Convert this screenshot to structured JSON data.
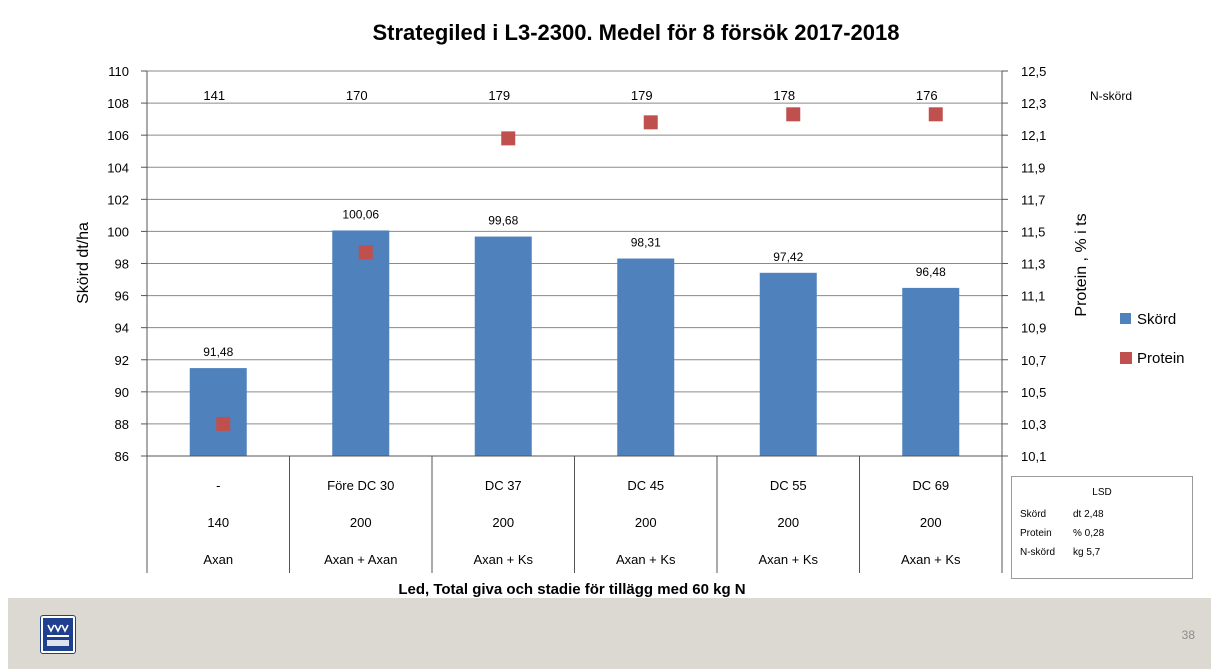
{
  "chart_data": {
    "type": "bar",
    "title": "Strategiled i L3-2300. Medel  för 8 försök 2017-2018",
    "xlabel": "Led, Total  giva  och stadie för tillägg  med  60 kg N",
    "ylabel": "Skörd dt/ha",
    "y2label": "Protein , % i ts",
    "ylim": [
      86,
      110
    ],
    "y2lim": [
      10.1,
      12.5
    ],
    "yticks": [
      "86",
      "88",
      "90",
      "92",
      "94",
      "96",
      "98",
      "100",
      "102",
      "104",
      "106",
      "108",
      "110"
    ],
    "y2ticks": [
      "10,1",
      "10,3",
      "10,5",
      "10,7",
      "10,9",
      "11,1",
      "11,3",
      "11,5",
      "11,7",
      "11,9",
      "12,1",
      "12,3",
      "12,5"
    ],
    "categories": [
      {
        "stage": "-",
        "total": "140",
        "product": "Axan"
      },
      {
        "stage": "Före DC 30",
        "total": "200",
        "product": "Axan + Axan"
      },
      {
        "stage": "DC 37",
        "total": "200",
        "product": "Axan + Ks"
      },
      {
        "stage": "DC 45",
        "total": "200",
        "product": "Axan + Ks"
      },
      {
        "stage": "DC 55",
        "total": "200",
        "product": "Axan + Ks"
      },
      {
        "stage": "DC 69",
        "total": "200",
        "product": "Axan + Ks"
      }
    ],
    "series": [
      {
        "name": "Skörd",
        "axis": "left",
        "kind": "bar",
        "color": "#4f81bd",
        "values": [
          91.48,
          100.06,
          99.68,
          98.31,
          97.42,
          96.48
        ],
        "labels": [
          "91,48",
          "100,06",
          "99,68",
          "98,31",
          "97,42",
          "96,48"
        ]
      },
      {
        "name": "Protein",
        "axis": "right",
        "kind": "marker",
        "color": "#c0504d",
        "values": [
          10.3,
          11.37,
          12.08,
          12.18,
          12.23,
          12.23
        ]
      }
    ],
    "n_skord": {
      "label": "N-skörd",
      "values": [
        "141",
        "170",
        "179",
        "179",
        "178",
        "176"
      ]
    },
    "legend": {
      "position": "right"
    }
  },
  "lsd": {
    "title": "LSD",
    "rows": [
      {
        "name": "Skörd",
        "value": "dt 2,48"
      },
      {
        "name": "Protein",
        "value": "% 0,28"
      },
      {
        "name": "N-skörd",
        "value": "kg 5,7"
      }
    ]
  },
  "footer": {
    "page_number": "38",
    "brand_color": "#1f3f8f"
  }
}
